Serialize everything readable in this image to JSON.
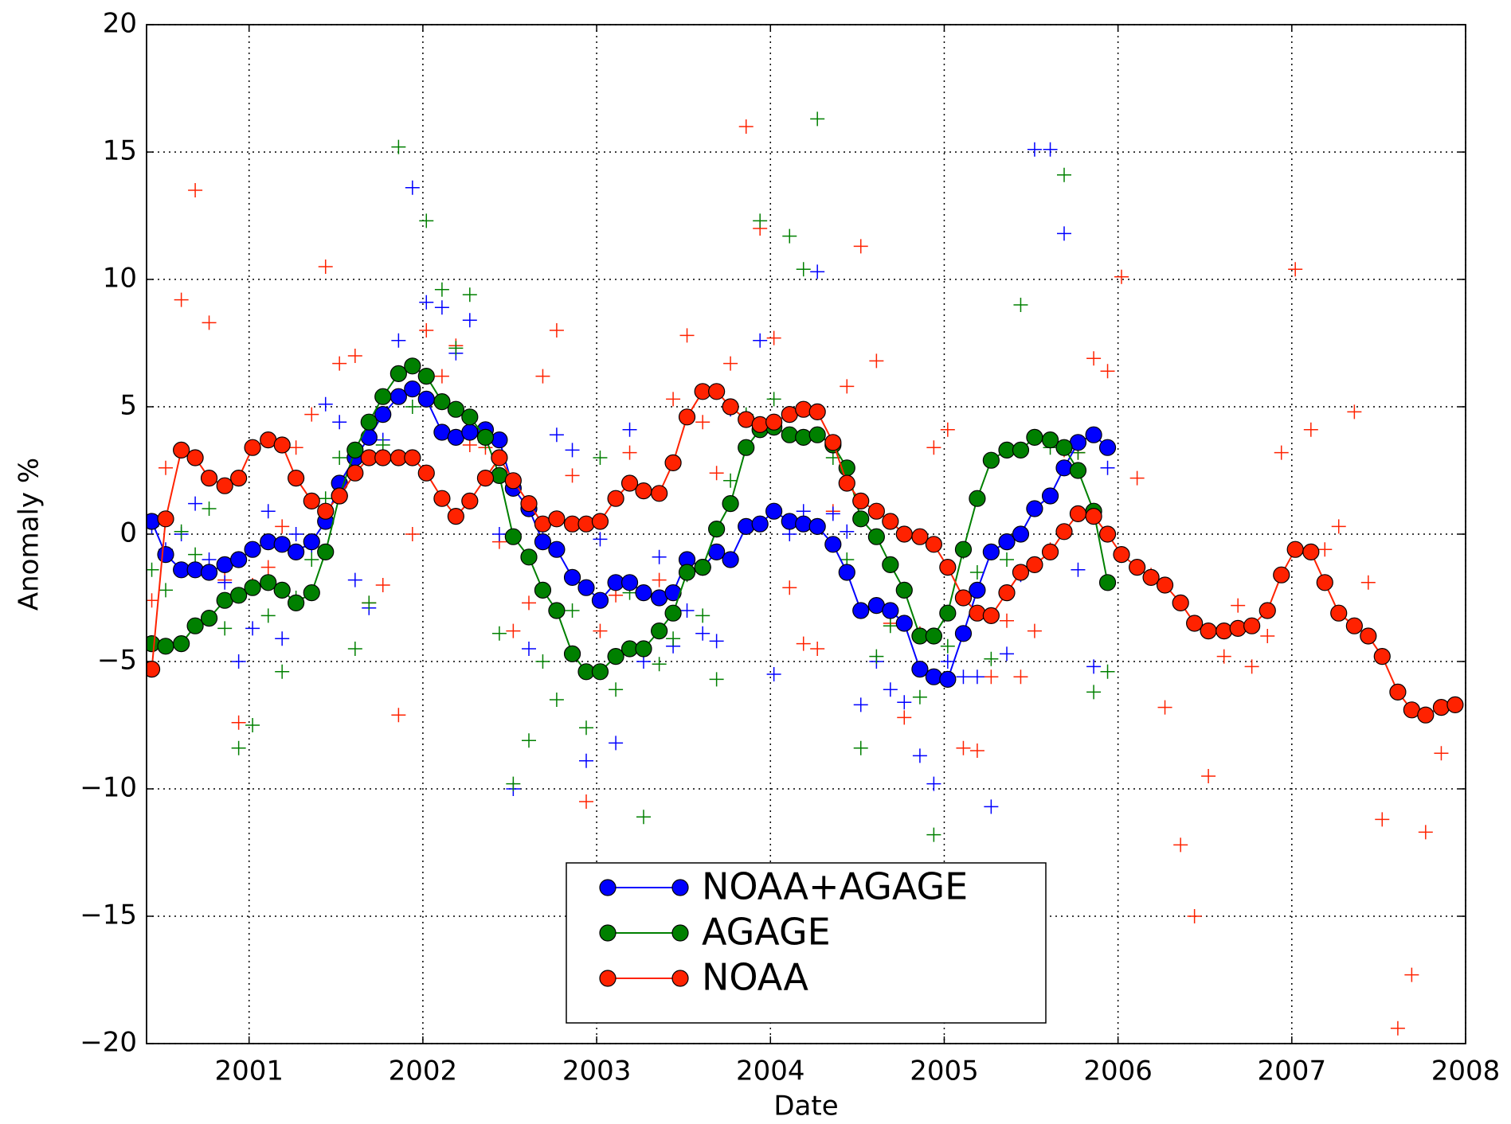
{
  "chart_data": {
    "type": "line",
    "xlabel": "Date",
    "ylabel": "Anomaly %",
    "xlim": [
      2000.41,
      2008
    ],
    "xticks": [
      2001,
      2002,
      2003,
      2004,
      2005,
      2006,
      2007,
      2008
    ],
    "ylim": [
      -20,
      20
    ],
    "yticks": [
      {
        "value": -20,
        "label": "−20"
      },
      {
        "value": -15,
        "label": "−15"
      },
      {
        "value": -10,
        "label": "−10"
      },
      {
        "value": -5,
        "label": "−5"
      },
      0,
      5,
      10,
      15,
      20
    ],
    "grid": true,
    "legend": "lower center",
    "x": [
      2000.44,
      2000.52,
      2000.61,
      2000.69,
      2000.77,
      2000.86,
      2000.94,
      2001.02,
      2001.11,
      2001.19,
      2001.27,
      2001.36,
      2001.44,
      2001.52,
      2001.61,
      2001.69,
      2001.77,
      2001.86,
      2001.94,
      2002.02,
      2002.11,
      2002.19,
      2002.27,
      2002.36,
      2002.44,
      2002.52,
      2002.61,
      2002.69,
      2002.77,
      2002.86,
      2002.94,
      2003.02,
      2003.11,
      2003.19,
      2003.27,
      2003.36,
      2003.44,
      2003.52,
      2003.61,
      2003.69,
      2003.77,
      2003.86,
      2003.94,
      2004.02,
      2004.11,
      2004.19,
      2004.27,
      2004.36,
      2004.44,
      2004.52,
      2004.61,
      2004.69,
      2004.77,
      2004.86,
      2004.94,
      2005.02,
      2005.11,
      2005.19,
      2005.27,
      2005.36,
      2005.44,
      2005.52,
      2005.61,
      2005.69,
      2005.77,
      2005.86,
      2005.94,
      2006.02,
      2006.11,
      2006.19,
      2006.27,
      2006.36,
      2006.44,
      2006.52,
      2006.61,
      2006.69,
      2006.77,
      2006.86,
      2006.94,
      2007.02,
      2007.11,
      2007.19,
      2007.27,
      2007.36,
      2007.44,
      2007.52,
      2007.61,
      2007.69,
      2007.77,
      2007.86,
      2007.94
    ],
    "series": [
      {
        "color": "#ff2200",
        "marker": "+",
        "values": [
          -2.6,
          2.6,
          9.2,
          13.5,
          8.3,
          -1.8,
          -7.4,
          -2.0,
          -1.3,
          0.3,
          3.4,
          4.7,
          10.5,
          6.7,
          7.0,
          -2.7,
          -2.0,
          -7.1,
          0.0,
          8.0,
          6.2,
          7.4,
          3.5,
          3.4,
          -0.3,
          -3.8,
          -2.7,
          6.2,
          8.0,
          2.3,
          -10.5,
          -3.8,
          -2.4,
          3.2,
          -2.3,
          -1.8,
          5.3,
          7.8,
          4.4,
          2.4,
          6.7,
          16.0,
          12.0,
          7.7,
          -2.1,
          -4.3,
          -4.5,
          0.9,
          5.8,
          11.3,
          6.8,
          -3.5,
          -7.2,
          -3.9,
          3.4,
          4.1,
          -8.4,
          -8.5,
          -5.6,
          -3.4,
          -5.6,
          -3.8,
          -0.6,
          3.3,
          3.2,
          6.9,
          6.4,
          10.1,
          2.2,
          -1.6,
          -6.8,
          -12.2,
          -15.0,
          -9.5,
          -4.8,
          -2.8,
          -5.2,
          -4.0,
          3.2,
          10.4,
          4.1,
          -0.6,
          0.3,
          4.8,
          -1.9,
          -11.2,
          -19.4,
          -17.3,
          -11.7,
          -8.6,
          null
        ]
      },
      {
        "color": "#0000ff",
        "marker": "+",
        "values": [
          0.3,
          -0.6,
          0.0,
          1.2,
          -1.0,
          -1.9,
          -5.0,
          -3.7,
          0.9,
          -4.1,
          0.0,
          -0.5,
          5.1,
          4.4,
          -1.8,
          -2.9,
          3.7,
          7.6,
          13.6,
          9.1,
          8.9,
          7.1,
          8.4,
          4.0,
          0.0,
          -10.0,
          -4.5,
          0.3,
          3.9,
          3.3,
          -8.9,
          -0.2,
          -8.2,
          4.1,
          -5.0,
          -0.9,
          -4.4,
          -3.0,
          -3.9,
          -4.2,
          4.9,
          4.6,
          7.6,
          -5.5,
          0.0,
          0.9,
          10.3,
          0.8,
          0.1,
          -6.7,
          -5.0,
          -6.1,
          -6.6,
          -8.7,
          -9.8,
          -5.0,
          -5.6,
          -5.6,
          -10.7,
          -4.7,
          -1.6,
          15.1,
          15.1,
          11.8,
          -1.4,
          -5.2,
          2.6,
          null,
          null,
          null,
          null,
          null,
          null,
          null,
          null,
          null,
          null,
          null,
          null,
          null,
          null,
          null,
          null,
          null,
          null,
          null,
          null,
          null,
          null,
          null,
          null
        ]
      },
      {
        "color": "#008000",
        "marker": "+",
        "values": [
          -1.4,
          -2.2,
          0.1,
          -0.8,
          1.0,
          -3.7,
          -8.4,
          -7.5,
          -3.2,
          -5.4,
          -2.5,
          -1.0,
          1.4,
          3.0,
          -4.5,
          -2.7,
          3.5,
          15.2,
          5.0,
          12.3,
          9.6,
          7.3,
          9.4,
          3.6,
          -3.9,
          -9.8,
          -8.1,
          -5.0,
          -6.5,
          -3.0,
          -7.6,
          3.0,
          -6.1,
          -2.3,
          -11.1,
          -5.1,
          -4.1,
          -1.6,
          -3.2,
          -5.7,
          2.1,
          4.7,
          12.3,
          5.3,
          11.7,
          10.4,
          16.3,
          3.0,
          -1.0,
          -8.4,
          -4.8,
          -3.6,
          -3.5,
          -6.4,
          -11.8,
          -4.4,
          -0.7,
          -1.5,
          -4.9,
          -1.0,
          9.0,
          3.8,
          3.4,
          14.1,
          3.2,
          -6.2,
          -5.4,
          null,
          null,
          null,
          null,
          null,
          null,
          null,
          null,
          null,
          null,
          null,
          null,
          null,
          null,
          null,
          null,
          null,
          null,
          null,
          null,
          null,
          null,
          null,
          null
        ]
      },
      {
        "name": "NOAA+AGAGE",
        "color": "#0000ff",
        "marker": "o",
        "values": [
          0.5,
          -0.8,
          -1.4,
          -1.4,
          -1.5,
          -1.2,
          -1.0,
          -0.6,
          -0.3,
          -0.4,
          -0.7,
          -0.3,
          0.5,
          2.0,
          3.0,
          3.8,
          4.7,
          5.4,
          5.7,
          5.3,
          4.0,
          3.8,
          4.0,
          4.1,
          3.7,
          1.8,
          1.0,
          -0.3,
          -0.6,
          -1.7,
          -2.1,
          -2.6,
          -1.9,
          -1.9,
          -2.3,
          -2.5,
          -2.3,
          -1.0,
          -1.3,
          -0.7,
          -1.0,
          0.3,
          0.4,
          0.9,
          0.5,
          0.4,
          0.3,
          -0.4,
          -1.5,
          -3.0,
          -2.8,
          -3.0,
          -3.5,
          -5.3,
          -5.6,
          -5.7,
          -3.9,
          -2.2,
          -0.7,
          -0.3,
          0.0,
          1.0,
          1.5,
          2.6,
          3.6,
          3.9,
          3.4,
          null,
          null,
          null,
          null,
          null,
          null,
          null,
          null,
          null,
          null,
          null,
          null,
          null,
          null,
          null,
          null,
          null,
          null,
          null,
          null,
          null,
          null,
          null,
          null
        ]
      },
      {
        "name": "AGAGE",
        "color": "#008000",
        "marker": "o",
        "values": [
          -4.3,
          -4.4,
          -4.3,
          -3.6,
          -3.3,
          -2.6,
          -2.4,
          -2.1,
          -1.9,
          -2.2,
          -2.7,
          -2.3,
          -0.7,
          1.5,
          3.3,
          4.4,
          5.4,
          6.3,
          6.6,
          6.2,
          5.2,
          4.9,
          4.6,
          3.8,
          2.3,
          -0.1,
          -0.9,
          -2.2,
          -3.0,
          -4.7,
          -5.4,
          -5.4,
          -4.8,
          -4.5,
          -4.5,
          -3.8,
          -3.1,
          -1.5,
          -1.3,
          0.2,
          1.2,
          3.4,
          4.1,
          4.2,
          3.9,
          3.8,
          3.9,
          3.5,
          2.6,
          0.6,
          -0.1,
          -1.2,
          -2.2,
          -4.0,
          -4.0,
          -3.1,
          -0.6,
          1.4,
          2.9,
          3.3,
          3.3,
          3.8,
          3.7,
          3.4,
          2.5,
          0.9,
          -1.9,
          null,
          null,
          null,
          null,
          null,
          null,
          null,
          null,
          null,
          null,
          null,
          null,
          null,
          null,
          null,
          null,
          null,
          null,
          null,
          null,
          null,
          null,
          null,
          null
        ]
      },
      {
        "name": "NOAA",
        "color": "#ff2200",
        "marker": "o",
        "values": [
          -5.3,
          0.6,
          3.3,
          3.0,
          2.2,
          1.9,
          2.2,
          3.4,
          3.7,
          3.5,
          2.2,
          1.3,
          0.9,
          1.5,
          2.4,
          3.0,
          3.0,
          3.0,
          3.0,
          2.4,
          1.4,
          0.7,
          1.3,
          2.2,
          3.0,
          2.1,
          1.2,
          0.4,
          0.6,
          0.4,
          0.4,
          0.5,
          1.4,
          2.0,
          1.7,
          1.6,
          2.8,
          4.6,
          5.6,
          5.6,
          5.0,
          4.5,
          4.3,
          4.4,
          4.7,
          4.9,
          4.8,
          3.6,
          2.0,
          1.3,
          0.9,
          0.5,
          0.0,
          -0.1,
          -0.4,
          -1.3,
          -2.5,
          -3.1,
          -3.2,
          -2.3,
          -1.5,
          -1.2,
          -0.7,
          0.1,
          0.8,
          0.7,
          0.0,
          -0.8,
          -1.3,
          -1.7,
          -2.0,
          -2.7,
          -3.5,
          -3.8,
          -3.8,
          -3.7,
          -3.6,
          -3.0,
          -1.6,
          -0.6,
          -0.7,
          -1.9,
          -3.1,
          -3.6,
          -4.0,
          -4.8,
          -6.2,
          -6.9,
          -7.1,
          -6.8,
          -6.7
        ]
      }
    ]
  }
}
